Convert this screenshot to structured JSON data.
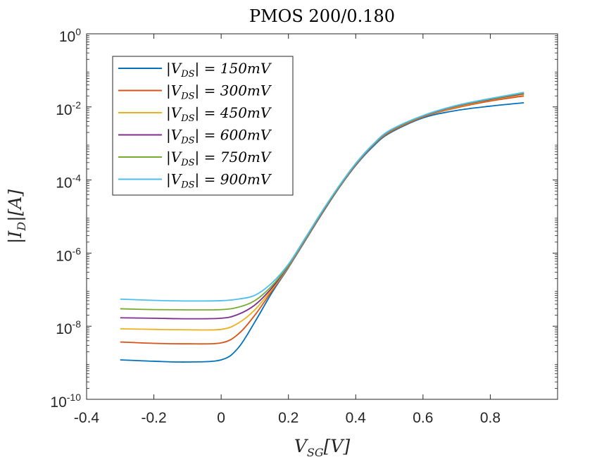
{
  "chart_data": {
    "type": "line",
    "title": "PMOS 200/0.180",
    "xlabel": "V_SG[V]",
    "ylabel": "|I_D|[A]",
    "xlim": [
      -0.4,
      1.0
    ],
    "ylim": [
      1e-10,
      1
    ],
    "yscale": "log",
    "grid": false,
    "legend_position": "top-left",
    "x_ticks": [
      "-0.4",
      "-0.2",
      "0",
      "0.2",
      "0.4",
      "0.6",
      "0.8"
    ],
    "y_ticks": [
      {
        "base": "10",
        "exp": "0"
      },
      {
        "base": "10",
        "exp": "-2"
      },
      {
        "base": "10",
        "exp": "-4"
      },
      {
        "base": "10",
        "exp": "-6"
      },
      {
        "base": "10",
        "exp": "-8"
      },
      {
        "base": "10",
        "exp": "-10"
      }
    ],
    "x": [
      -0.3,
      -0.2,
      -0.1,
      0.0,
      0.05,
      0.1,
      0.15,
      0.2,
      0.25,
      0.3,
      0.35,
      0.4,
      0.45,
      0.5,
      0.6,
      0.7,
      0.8,
      0.9
    ],
    "series": [
      {
        "name": "|V_DS| = 150mV",
        "color": "#0072BD",
        "values": [
          1.2e-09,
          1.1e-09,
          1.05e-09,
          1.2e-09,
          2.5e-09,
          1.3e-08,
          8e-08,
          4e-07,
          2.2e-06,
          1.2e-05,
          6e-05,
          0.00025,
          0.0008,
          0.0019,
          0.005,
          0.008,
          0.0105,
          0.013
        ]
      },
      {
        "name": "|V_DS| = 300mV",
        "color": "#D95319",
        "values": [
          3.7e-09,
          3.4e-09,
          3.3e-09,
          3.5e-09,
          6e-09,
          2e-08,
          9e-08,
          4.2e-07,
          2.3e-06,
          1.25e-05,
          6.2e-05,
          0.00026,
          0.00085,
          0.002,
          0.0053,
          0.0095,
          0.0145,
          0.02
        ]
      },
      {
        "name": "|V_DS| = 450mV",
        "color": "#EDB120",
        "values": [
          8.5e-09,
          8.2e-09,
          8e-09,
          8.2e-09,
          1.2e-08,
          2.8e-08,
          1e-07,
          4.3e-07,
          2.4e-06,
          1.3e-05,
          6.4e-05,
          0.00027,
          0.00087,
          0.0021,
          0.0055,
          0.01,
          0.0155,
          0.022
        ]
      },
      {
        "name": "|V_DS| = 600mV",
        "color": "#7E2F8E",
        "values": [
          1.7e-08,
          1.65e-08,
          1.6e-08,
          1.65e-08,
          2.1e-08,
          3.8e-08,
          1.1e-07,
          4.5e-07,
          2.45e-06,
          1.32e-05,
          6.5e-05,
          0.000275,
          0.00088,
          0.00215,
          0.0056,
          0.0105,
          0.016,
          0.023
        ]
      },
      {
        "name": "|V_DS| = 750mV",
        "color": "#77AC30",
        "values": [
          3e-08,
          2.85e-08,
          2.8e-08,
          2.85e-08,
          3.3e-08,
          5e-08,
          1.25e-07,
          4.7e-07,
          2.5e-06,
          1.35e-05,
          6.6e-05,
          0.00028,
          0.0009,
          0.0022,
          0.0057,
          0.0108,
          0.0165,
          0.024
        ]
      },
      {
        "name": "|V_DS| = 900mV",
        "color": "#4DBEEE",
        "values": [
          5.5e-08,
          5.1e-08,
          4.9e-08,
          5e-08,
          5.5e-08,
          7e-08,
          1.5e-07,
          5e-07,
          2.6e-06,
          1.4e-05,
          6.8e-05,
          0.000285,
          0.00092,
          0.00225,
          0.0058,
          0.011,
          0.017,
          0.025
        ]
      }
    ]
  }
}
